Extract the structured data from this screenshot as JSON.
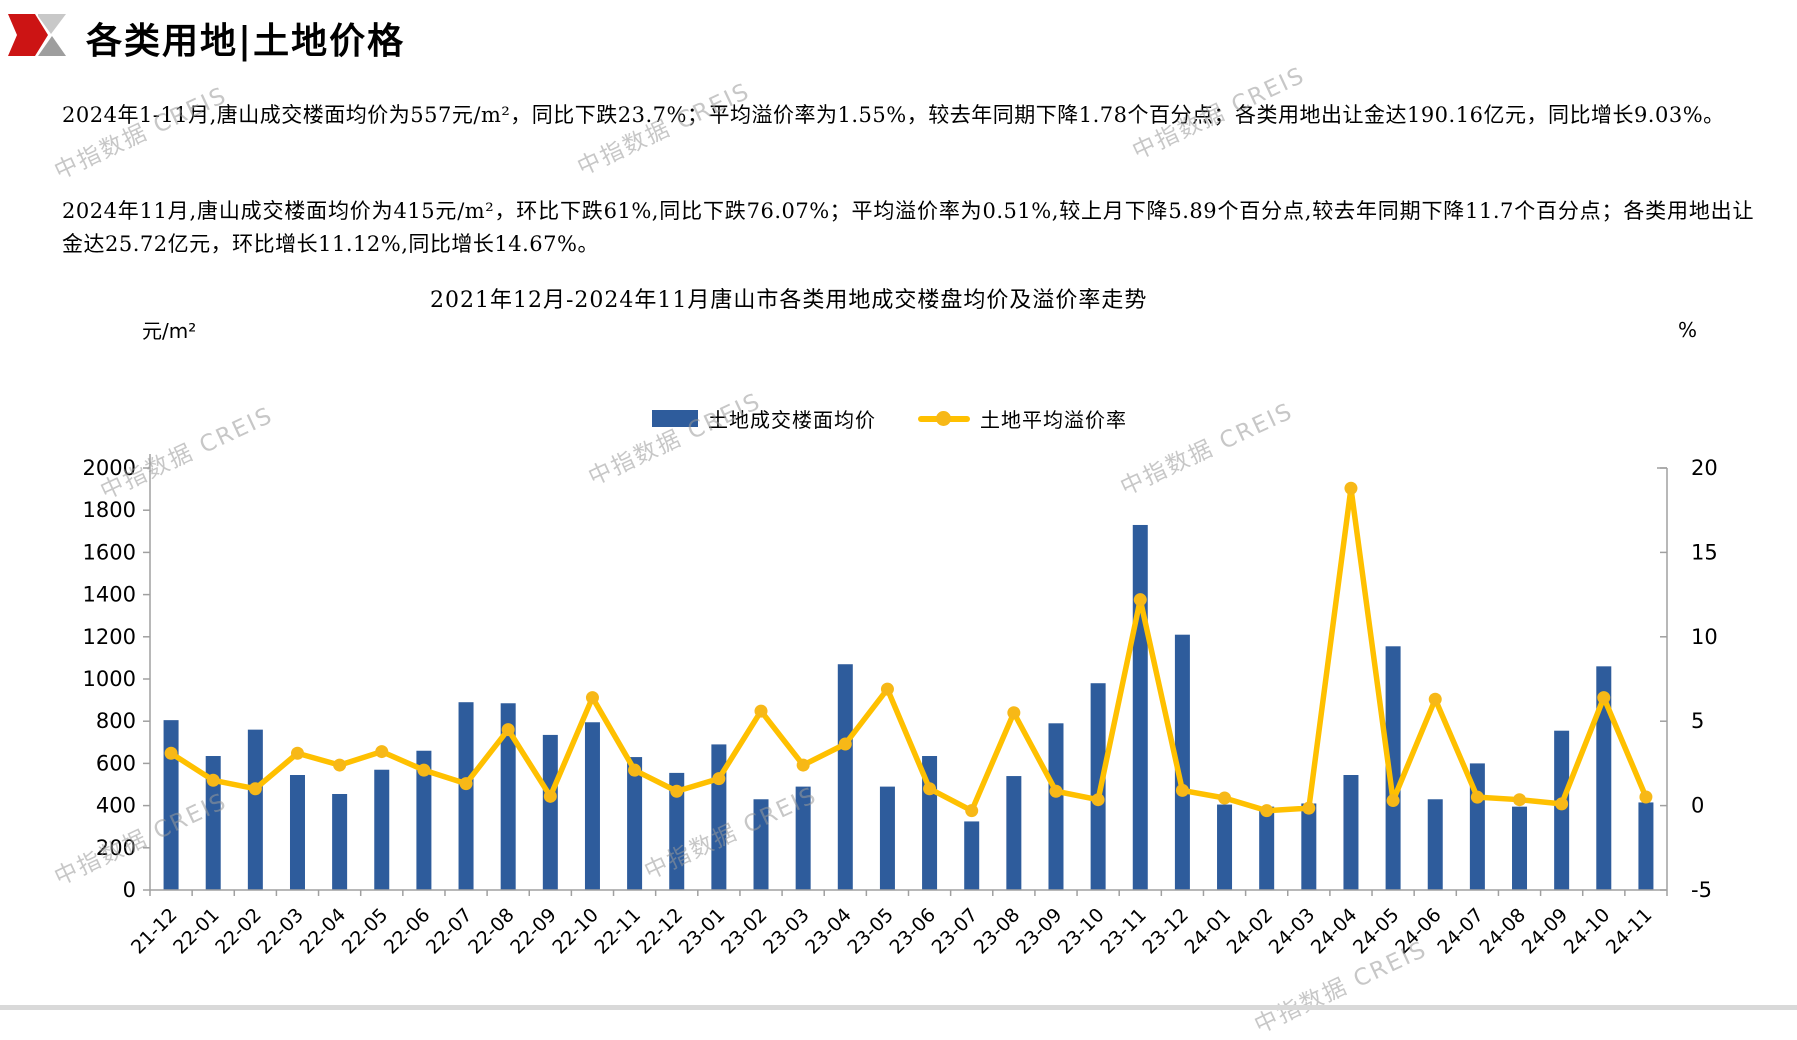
{
  "header": {
    "title": "各类用地|土地价格"
  },
  "paragraphs": {
    "p1": "2024年1-11月,唐山成交楼面均价为557元/m²，同比下跌23.7%；平均溢价率为1.55%，较去年同期下降1.78个百分点；各类用地出让金达190.16亿元，同比增长9.03%。",
    "p2": "2024年11月,唐山成交楼面均价为415元/m²，环比下跌61%,同比下跌76.07%；平均溢价率为0.51%,较上月下降5.89个百分点,较去年同期下降11.7个百分点；各类用地出让金达25.72亿元，环比增长11.12%,同比增长14.67%。"
  },
  "watermark": {
    "text": "中指数据 CREIS"
  },
  "chart_data": {
    "type": "combo",
    "title": "2021年12月-2024年11月唐山市各类用地成交楼盘均价及溢价率走势",
    "categories": [
      "21-12",
      "22-01",
      "22-02",
      "22-03",
      "22-04",
      "22-05",
      "22-06",
      "22-07",
      "22-08",
      "22-09",
      "22-10",
      "22-11",
      "22-12",
      "23-01",
      "23-02",
      "23-03",
      "23-04",
      "23-05",
      "23-06",
      "23-07",
      "23-08",
      "23-09",
      "23-10",
      "23-11",
      "23-12",
      "24-01",
      "24-02",
      "24-03",
      "24-04",
      "24-05",
      "24-06",
      "24-07",
      "24-08",
      "24-09",
      "24-10",
      "24-11"
    ],
    "series": [
      {
        "name": "土地成交楼面均价",
        "type": "bar",
        "axis": "left",
        "color": "#2E5C9C",
        "values": [
          805,
          635,
          760,
          545,
          455,
          570,
          660,
          890,
          885,
          735,
          795,
          630,
          555,
          690,
          430,
          490,
          1070,
          490,
          635,
          325,
          540,
          790,
          980,
          1730,
          1210,
          405,
          395,
          410,
          545,
          1155,
          430,
          600,
          395,
          755,
          1060,
          415
        ]
      },
      {
        "name": "土地平均溢价率",
        "type": "line",
        "axis": "right",
        "color": "#FFC000",
        "marker_color": "#F7B817",
        "values": [
          3.1,
          1.5,
          1.0,
          3.1,
          2.4,
          3.2,
          2.1,
          1.3,
          4.5,
          0.55,
          6.4,
          2.1,
          0.85,
          1.6,
          5.6,
          2.4,
          3.65,
          6.9,
          1.0,
          -0.3,
          5.5,
          0.85,
          0.35,
          12.2,
          0.9,
          0.45,
          -0.3,
          -0.15,
          18.8,
          0.3,
          6.3,
          0.5,
          0.35,
          0.1,
          6.4,
          0.51
        ]
      }
    ],
    "left_axis": {
      "unit": "元/m²",
      "min": 0,
      "max": 2000,
      "step": 200
    },
    "right_axis": {
      "unit": "%",
      "min": -5,
      "max": 20,
      "step": 5
    },
    "legend_position": "top",
    "grid": false,
    "axis_color": "#a0a0a0"
  }
}
